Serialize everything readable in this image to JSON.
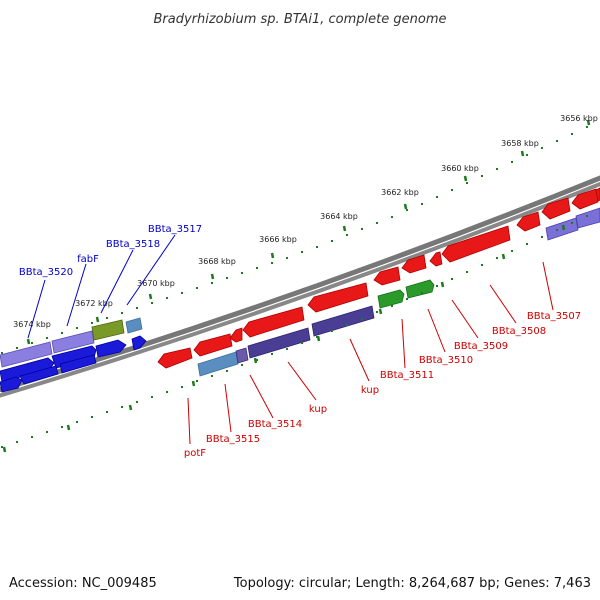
{
  "title": "Bradyrhizobium sp. BTAi1, complete genome",
  "accession": "Accession: NC_009485",
  "summary": "Topology: circular; Length: 8,264,687 bp; Genes: 7,463",
  "colors": {
    "forward_label": "#0000cc",
    "reverse_label": "#cc0000",
    "backbone": "#777777",
    "ticks": "#1f7a1f"
  },
  "scale_ticks": [
    "3674 kbp",
    "3672 kbp",
    "3670 kbp",
    "3668 kbp",
    "3666 kbp",
    "3664 kbp",
    "3662 kbp",
    "3660 kbp",
    "3658 kbp",
    "3656 kbp"
  ],
  "forward_gene_labels": [
    "BBta_3520",
    "fabF",
    "BBta_3518",
    "BBta_3517"
  ],
  "reverse_gene_labels": [
    "potF",
    "BBta_3515",
    "BBta_3514",
    "kup",
    "kup",
    "BBta_3511",
    "BBta_3510",
    "BBta_3509",
    "BBta_3508",
    "BBta_3507"
  ]
}
